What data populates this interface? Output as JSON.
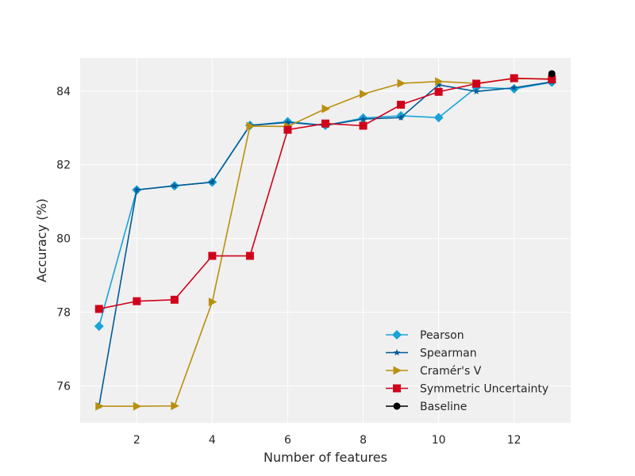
{
  "chart_data": {
    "type": "line",
    "title": "",
    "xlabel": "Number of features",
    "ylabel": "Accuracy (%)",
    "xlim": [
      0.5,
      13.5
    ],
    "ylim": [
      75.0,
      84.9
    ],
    "x_ticks": [
      2,
      4,
      6,
      8,
      10,
      12
    ],
    "y_ticks": [
      76,
      78,
      80,
      82,
      84
    ],
    "grid": true,
    "legend_position": "lower-right",
    "x": [
      1,
      2,
      3,
      4,
      5,
      6,
      7,
      8,
      9,
      10,
      11,
      12,
      13
    ],
    "series": [
      {
        "name": "Pearson",
        "color": "#1aa3d6",
        "marker": "diamond",
        "values": [
          77.62,
          81.32,
          81.43,
          81.53,
          83.07,
          83.17,
          83.07,
          83.27,
          83.33,
          83.28,
          84.1,
          84.06,
          84.24
        ]
      },
      {
        "name": "Spearman",
        "color": "#005b96",
        "marker": "star",
        "values": [
          75.46,
          81.32,
          81.43,
          81.53,
          83.07,
          83.15,
          83.07,
          83.24,
          83.28,
          84.17,
          83.99,
          84.09,
          84.25
        ]
      },
      {
        "name": "Cramér's V",
        "color": "#b8900e",
        "marker": "triangle-right",
        "values": [
          75.45,
          75.45,
          75.46,
          78.28,
          83.05,
          83.04,
          83.52,
          83.92,
          84.21,
          84.26,
          84.21,
          84.34,
          84.33
        ]
      },
      {
        "name": "Symmetric Uncertainty",
        "color": "#d0021b",
        "marker": "square",
        "values": [
          78.09,
          78.3,
          78.34,
          79.53,
          79.53,
          82.95,
          83.12,
          83.06,
          83.63,
          83.98,
          84.2,
          84.35,
          84.32
        ]
      },
      {
        "name": "Baseline",
        "color": "#000000",
        "marker": "circle",
        "points": [
          [
            13,
            84.47
          ]
        ]
      }
    ],
    "colors": {
      "plot_background": "#f0f0f0",
      "grid": "#ffffff",
      "text": "#262626"
    }
  }
}
